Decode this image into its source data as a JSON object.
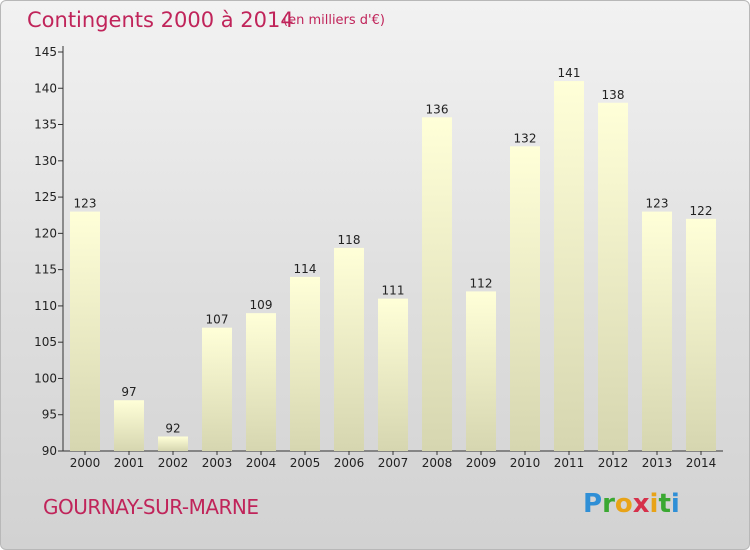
{
  "header": {
    "title": "Contingents 2000 à 2014",
    "subtitle": "(en milliers d'€)"
  },
  "footer": {
    "commune": "GOURNAY-SUR-MARNE",
    "logo_letters": [
      "P",
      "r",
      "o",
      "x",
      "i",
      "t",
      "i"
    ],
    "logo_colors": [
      "#2f8fd6",
      "#3aa832",
      "#e8a317",
      "#d6304a",
      "#e8a317",
      "#3aa832",
      "#2f8fd6"
    ]
  },
  "colors": {
    "title": "#c0245a",
    "bar_top": "#ffffd8",
    "bar_bottom": "#d6d6b0",
    "axis": "#333333"
  },
  "chart_data": {
    "type": "bar",
    "title": "Contingents 2000 à 2014",
    "subtitle": "(en milliers d'€)",
    "categories": [
      "2000",
      "2001",
      "2002",
      "2003",
      "2004",
      "2005",
      "2006",
      "2007",
      "2008",
      "2009",
      "2010",
      "2011",
      "2012",
      "2013",
      "2014"
    ],
    "values": [
      123,
      97,
      92,
      107,
      109,
      114,
      118,
      111,
      136,
      112,
      132,
      141,
      138,
      123,
      122
    ],
    "ylim": [
      90,
      145
    ],
    "yticks": [
      90,
      95,
      100,
      105,
      110,
      115,
      120,
      125,
      130,
      135,
      140,
      145
    ],
    "grid": false,
    "xlabel": "",
    "ylabel": ""
  }
}
